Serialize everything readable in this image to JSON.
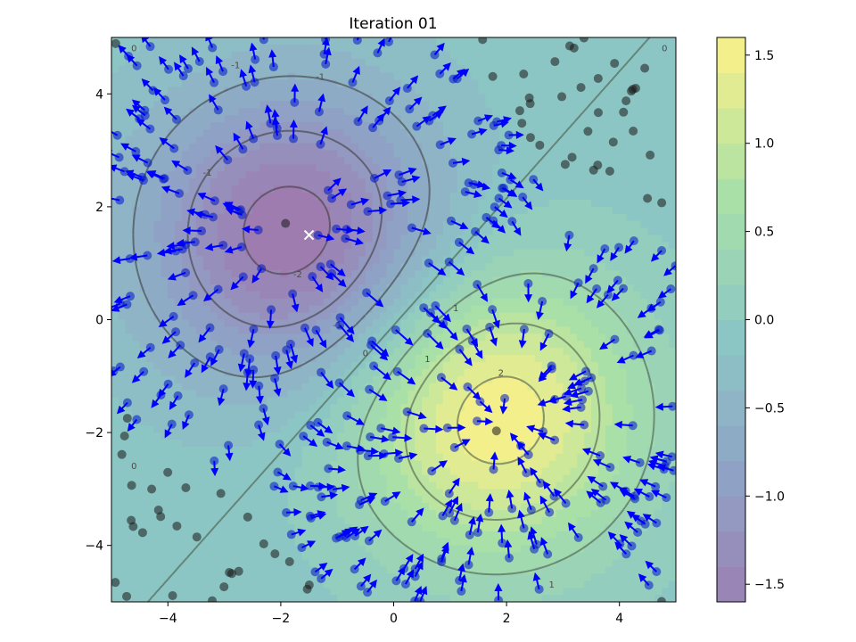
{
  "chart_data": {
    "type": "contour",
    "title": "Iteration 01",
    "xlabel": "",
    "ylabel": "",
    "xlim": [
      -5,
      5
    ],
    "ylim": [
      -5,
      5
    ],
    "x_ticks": [
      -4,
      -2,
      0,
      2,
      4
    ],
    "y_ticks": [
      -4,
      -2,
      0,
      2,
      4
    ],
    "grid": false,
    "field": {
      "description": "difference of two Gaussian bumps",
      "negative_center": [
        -1.8,
        1.5
      ],
      "positive_center": [
        1.8,
        -1.7
      ],
      "sigma": 1.8,
      "amplitude": 1.7
    },
    "contour_levels": [
      -1.5,
      -1,
      -0.5,
      0,
      0.5,
      1,
      1.5
    ],
    "contour_labels": [
      {
        "x": -4.6,
        "y": 4.8,
        "text": "0"
      },
      {
        "x": -2.8,
        "y": 4.5,
        "text": "-1"
      },
      {
        "x": -1.3,
        "y": 4.3,
        "text": "-1"
      },
      {
        "x": -3.3,
        "y": 2.6,
        "text": "-1"
      },
      {
        "x": -1.7,
        "y": 0.8,
        "text": "-2"
      },
      {
        "x": -1.0,
        "y": -0.1,
        "text": "-1"
      },
      {
        "x": -0.5,
        "y": -0.6,
        "text": "0"
      },
      {
        "x": 1.1,
        "y": 0.2,
        "text": "1"
      },
      {
        "x": 0.6,
        "y": -0.7,
        "text": "1"
      },
      {
        "x": 1.9,
        "y": -0.95,
        "text": "2"
      },
      {
        "x": 2.8,
        "y": -4.7,
        "text": "1"
      },
      {
        "x": -4.6,
        "y": -2.6,
        "text": "0"
      },
      {
        "x": 4.8,
        "y": 4.8,
        "text": "0"
      }
    ],
    "marker": {
      "x": -1.5,
      "y": 1.5,
      "symbol": "x",
      "color": "#ffffff"
    },
    "colorbar": {
      "range": [
        -1.6,
        1.6
      ],
      "ticks": [
        1.5,
        1.0,
        0.5,
        0.0,
        -0.5,
        -1.0,
        -1.5
      ],
      "tick_labels": [
        "1.5",
        "1.0",
        "0.5",
        "0.0",
        "−0.5",
        "−1.0",
        "−1.5"
      ],
      "colormap": [
        "#9e7cb0",
        "#8fa2c6",
        "#8cc6c4",
        "#a8e0a8",
        "#f3ef8a"
      ]
    },
    "points": {
      "count": 420,
      "seed": 7,
      "point_color_far": "#1a1a1a",
      "point_color_near": "#0018c8",
      "arrow_color": "#0000ff"
    }
  }
}
